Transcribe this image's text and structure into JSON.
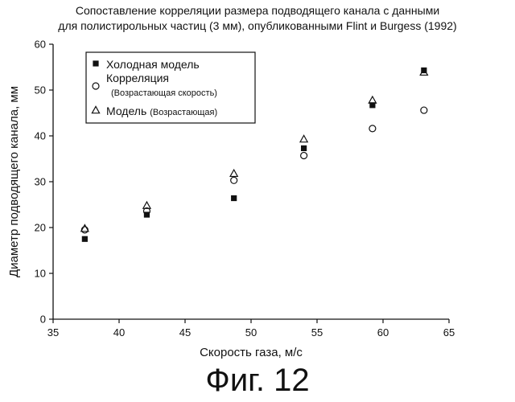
{
  "title": {
    "line1": "Сопоставление корреляции размера подводящего канала с данными",
    "line2": "для полистирольных частиц (3 мм), опубликованными Flint и Burgess (1992)"
  },
  "figure_caption": "Фиг. 12",
  "chart_data": {
    "type": "scatter",
    "title": "Сопоставление корреляции размера подводящего канала с данными для полистирольных частиц (3 мм), опубликованными Flint и Burgess (1992)",
    "xlabel": "Скорость газа, м/с",
    "ylabel": "Диаметр подводящего канала, мм",
    "xlim": [
      35,
      65
    ],
    "ylim": [
      0,
      60
    ],
    "x_ticks": [
      "35",
      "40",
      "45",
      "50",
      "55",
      "60",
      "65"
    ],
    "y_ticks": [
      "0",
      "10",
      "20",
      "30",
      "40",
      "50",
      "60"
    ],
    "grid": false,
    "legend_position": "top-left",
    "series": [
      {
        "name": "Холодная модель",
        "legend_sub": "",
        "marker": "filled-square",
        "x": [
          37.4,
          42.1,
          48.7,
          54.0,
          59.2,
          63.1
        ],
        "y": [
          17.5,
          22.8,
          26.4,
          37.3,
          46.7,
          54.3
        ]
      },
      {
        "name": "Корреляция",
        "legend_sub": "(Возрастающая скорость)",
        "marker": "open-circle",
        "x": [
          37.4,
          42.1,
          48.7,
          54.0,
          59.2,
          63.1
        ],
        "y": [
          19.5,
          23.6,
          30.3,
          35.7,
          41.6,
          45.6
        ]
      },
      {
        "name": "Модель",
        "legend_sub": "(Возрастающая)",
        "marker": "open-triangle",
        "x": [
          37.4,
          42.1,
          48.7,
          54.0,
          59.2,
          63.1
        ],
        "y": [
          19.8,
          24.8,
          31.8,
          39.3,
          47.8,
          53.9
        ]
      }
    ]
  }
}
